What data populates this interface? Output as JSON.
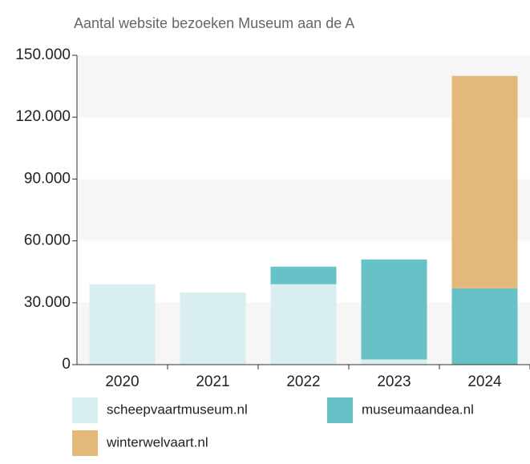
{
  "chart_data": {
    "type": "stacked_bar",
    "title": "Aantal website bezoeken Museum aan de A",
    "categories": [
      "2020",
      "2021",
      "2022",
      "2023",
      "2024"
    ],
    "series": [
      {
        "name": "scheepvaartmuseum.nl",
        "color": "#d9eef0",
        "values": [
          39000,
          35000,
          39000,
          2500,
          0
        ]
      },
      {
        "name": "museumaandea.nl",
        "color": "#66c2c6",
        "values": [
          0,
          0,
          8500,
          48500,
          37000
        ]
      },
      {
        "name": "winterwelvaart.nl",
        "color": "#e3b97a",
        "values": [
          0,
          0,
          0,
          0,
          103000
        ]
      }
    ],
    "ylim": [
      0,
      150000
    ],
    "yticks": [
      {
        "value": 0,
        "label": "0"
      },
      {
        "value": 30000,
        "label": "30.000"
      },
      {
        "value": 60000,
        "label": "60.000"
      },
      {
        "value": 90000,
        "label": "90.000"
      },
      {
        "value": 120000,
        "label": "120.000"
      },
      {
        "value": 150000,
        "label": "150.000"
      }
    ],
    "grid": true
  }
}
